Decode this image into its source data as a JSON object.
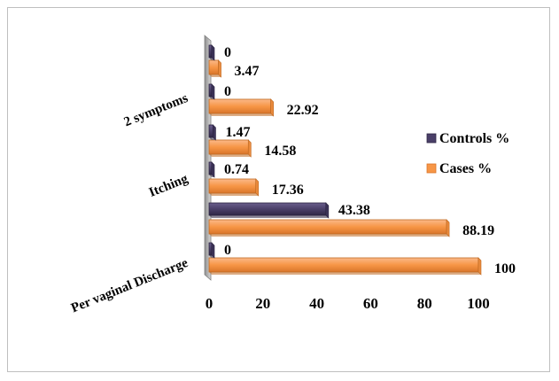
{
  "chart_data": {
    "type": "bar",
    "orientation": "horizontal",
    "categories": [
      "Per vaginal Discharge",
      "",
      "Itching",
      "",
      "2 symptoms",
      ""
    ],
    "series": [
      {
        "name": "Controls %",
        "color": "#4a3f68",
        "values": [
          0,
          43.38,
          0.74,
          1.47,
          0,
          0
        ]
      },
      {
        "name": "Cases %",
        "color": "#f79646",
        "values": [
          100,
          88.19,
          17.36,
          14.58,
          22.92,
          3.47
        ]
      }
    ],
    "value_labels": {
      "Controls %": [
        "0",
        "43.38",
        "0.74",
        "1.47",
        "0",
        "0"
      ],
      "Cases %": [
        "100",
        "88.19",
        "17.36",
        "14.58",
        "22.92",
        "3.47"
      ]
    },
    "xlim": [
      0,
      100
    ],
    "xticks": [
      "0",
      "20",
      "40",
      "60",
      "80",
      "100"
    ],
    "legend_position": "right",
    "grid": false
  }
}
